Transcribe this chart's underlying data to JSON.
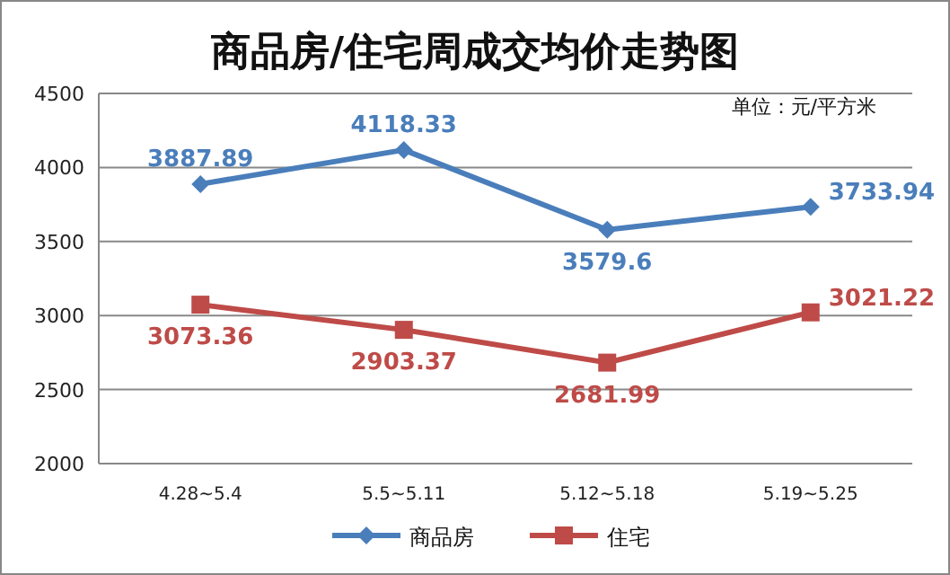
{
  "chart_data": {
    "type": "line",
    "title": "商品房/住宅周成交均价走势图",
    "annotations": [
      "单位：元/平方米"
    ],
    "categories": [
      "4.28~5.4",
      "5.5~5.11",
      "5.12~5.18",
      "5.19~5.25"
    ],
    "series": [
      {
        "name": "商品房",
        "color": "#4a7ebb",
        "marker": "diamond",
        "values": [
          3887.89,
          4118.33,
          3579.6,
          3733.94
        ]
      },
      {
        "name": "住宅",
        "color": "#be4b48",
        "marker": "square",
        "values": [
          3073.36,
          2903.37,
          2681.99,
          3021.22
        ]
      }
    ],
    "ylim": [
      2000,
      4500
    ],
    "yticks": [
      2000,
      2500,
      3000,
      3500,
      4000,
      4500
    ],
    "grid": "y",
    "legend": "bottom",
    "data_labels": true
  }
}
